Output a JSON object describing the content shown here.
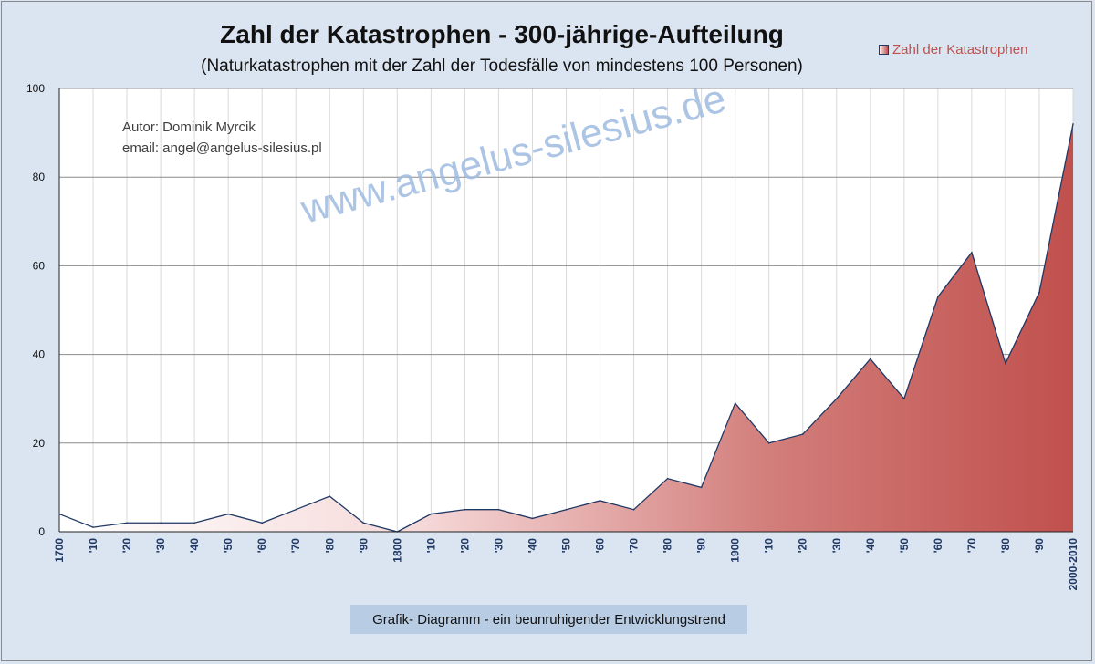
{
  "chart_data": {
    "type": "area",
    "title": "Zahl der Katastrophen - 300-jährige-Aufteilung",
    "subtitle": "(Naturkatastrophen mit der Zahl der Todesfälle von mindestens 100 Personen)",
    "categories": [
      "1700",
      "'10",
      "'20",
      "'30",
      "'40",
      "'50",
      "'60",
      "'70",
      "'80",
      "'90",
      "1800",
      "'10",
      "'20",
      "'30",
      "'40",
      "'50",
      "'60",
      "'70",
      "'80",
      "'90",
      "1900",
      "'10",
      "'20",
      "'30",
      "'40",
      "'50",
      "'60",
      "'70",
      "'80",
      "'90",
      "2000-2010"
    ],
    "series": [
      {
        "name": "Zahl der Katastrophen",
        "values": [
          4,
          1,
          2,
          2,
          2,
          4,
          2,
          5,
          8,
          2,
          0,
          4,
          5,
          5,
          3,
          5,
          7,
          5,
          12,
          10,
          29,
          20,
          22,
          30,
          39,
          30,
          53,
          63,
          38,
          54,
          92
        ]
      }
    ],
    "ylim": [
      0,
      100
    ],
    "yticks": [
      0,
      20,
      40,
      60,
      80,
      100
    ],
    "grid": true,
    "legend_position": "top-right",
    "colors": {
      "fill": "#c0504d",
      "line": "#1f3864"
    }
  },
  "annotations": {
    "author": "Autor:  Dominik Myrcik",
    "email": "email:  angel@angelus-silesius.pl",
    "watermark": "www.angelus-silesius.de",
    "caption": "Grafik- Diagramm - ein beunruhigender Entwicklungstrend"
  }
}
